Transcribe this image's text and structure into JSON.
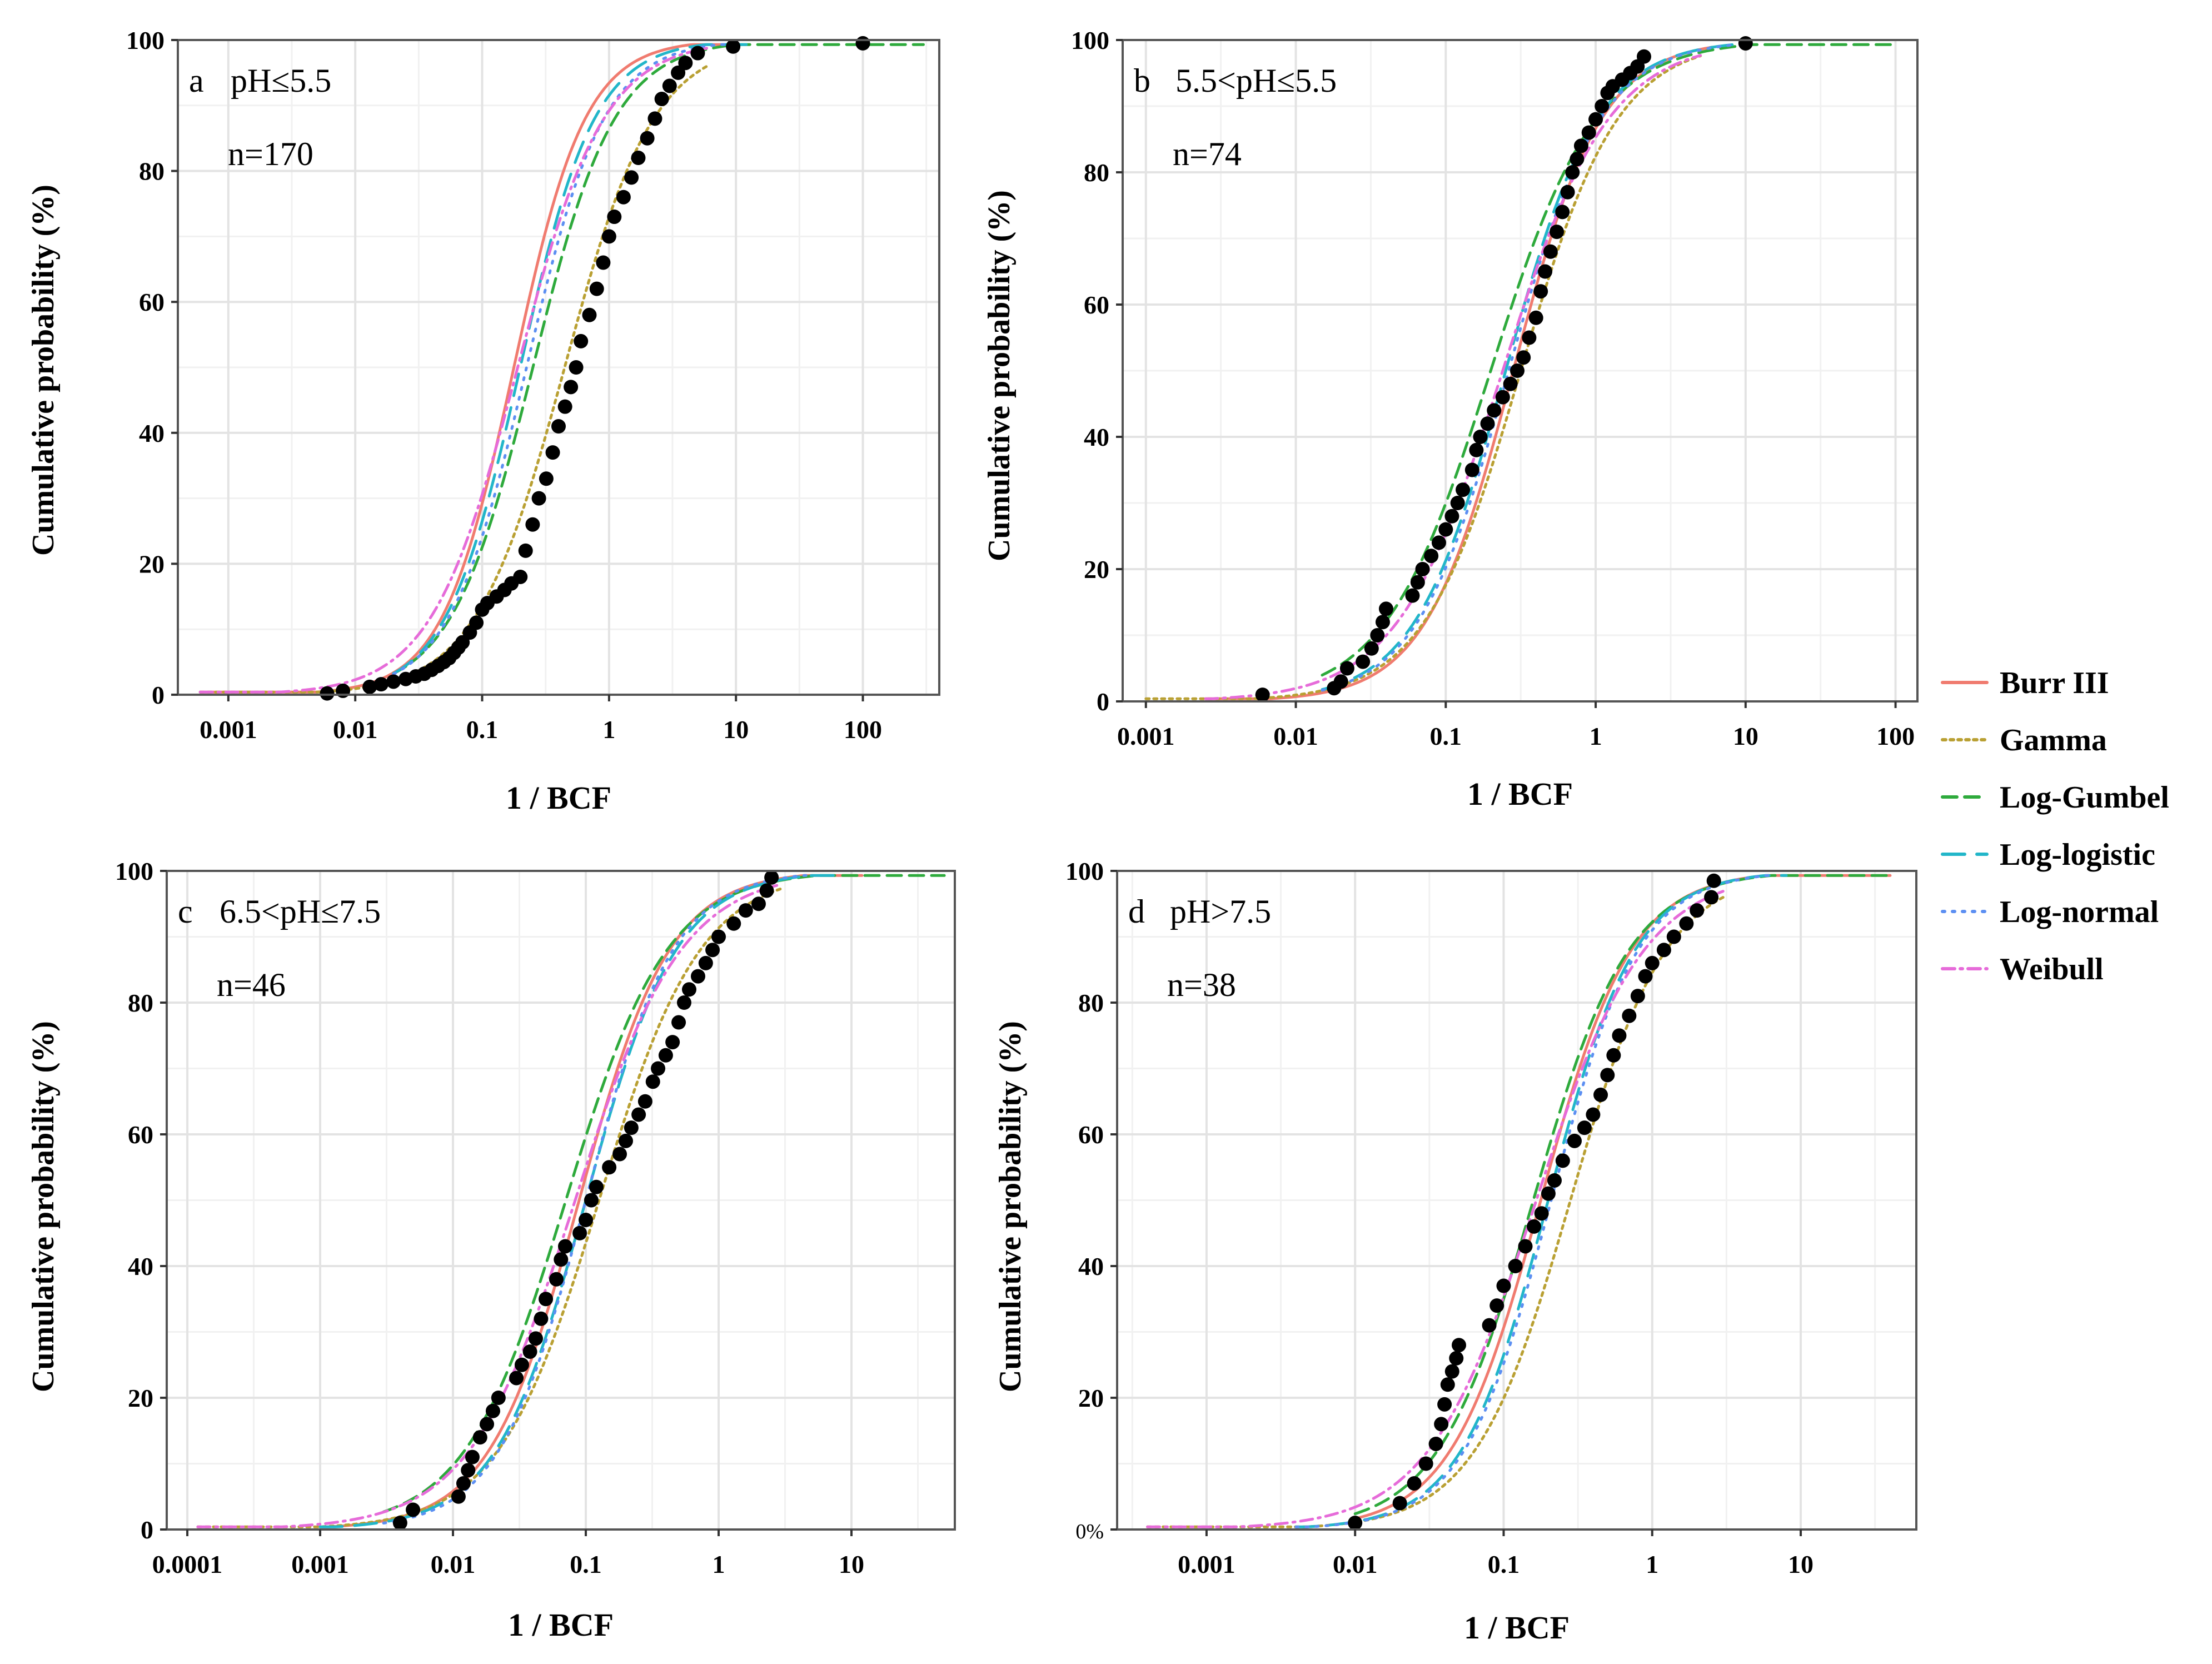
{
  "legend": {
    "entries": [
      {
        "name": "Burr III",
        "color": "#f07b6f",
        "dash": "solid"
      },
      {
        "name": "Gamma",
        "color": "#b9a033",
        "dash": "dotdense"
      },
      {
        "name": "Log-Gumbel",
        "color": "#2eaa3c",
        "dash": "dashed"
      },
      {
        "name": "Log-logistic",
        "color": "#22b6c9",
        "dash": "longdash"
      },
      {
        "name": "Log-normal",
        "color": "#5c8ff2",
        "dash": "dotted"
      },
      {
        "name": "Weibull",
        "color": "#e66bd9",
        "dash": "dashdot"
      }
    ]
  },
  "chart_data": [
    {
      "panel": "a",
      "label": "a",
      "title": "pH≤5.5",
      "n_label": "n=170",
      "type": "line",
      "xscale": "log",
      "xlabel": "1 / BCF",
      "ylabel": "Cumulative probability (%)",
      "xlim": [
        0.0004,
        400
      ],
      "ylim": [
        0,
        100
      ],
      "xticks": [
        "0.001",
        "0.01",
        "0.1",
        "1",
        "10",
        "100"
      ],
      "yticks": [
        "0",
        "20",
        "40",
        "60",
        "80",
        "100"
      ],
      "grid": true,
      "fits": {
        "Burr III": {
          "mu": -0.75,
          "sigma": 0.48,
          "start": 0.0006,
          "end": 8
        },
        "Gamma": {
          "mu": -0.35,
          "sigma": 0.6,
          "start": 0.0006,
          "end": 6
        },
        "Log-Gumbel": {
          "mu": -0.6,
          "sigma": 0.55,
          "start": 0.02,
          "end": 300
        },
        "Log-logistic": {
          "mu": -0.7,
          "sigma": 0.5,
          "start": 0.02,
          "end": 15
        },
        "Log-normal": {
          "mu": -0.65,
          "sigma": 0.52,
          "start": 0.02,
          "end": 10
        },
        "Weibull": {
          "mu": -0.72,
          "sigma": 0.58,
          "start": 0.0006,
          "end": 6
        }
      },
      "points": {
        "x": [
          0.006,
          0.008,
          0.013,
          0.016,
          0.02,
          0.025,
          0.03,
          0.035,
          0.04,
          0.045,
          0.05,
          0.055,
          0.06,
          0.065,
          0.07,
          0.08,
          0.09,
          0.1,
          0.11,
          0.13,
          0.15,
          0.17,
          0.2,
          0.22,
          0.25,
          0.28,
          0.32,
          0.36,
          0.4,
          0.45,
          0.5,
          0.55,
          0.6,
          0.7,
          0.8,
          0.9,
          1.0,
          1.1,
          1.3,
          1.5,
          1.7,
          2.0,
          2.3,
          2.6,
          3.0,
          3.5,
          4.0,
          5.0,
          9.5,
          100
        ],
        "y": [
          0.2,
          0.6,
          1.2,
          1.6,
          2.0,
          2.4,
          2.8,
          3.2,
          3.8,
          4.4,
          5.0,
          5.6,
          6.4,
          7.2,
          8.0,
          9.5,
          11,
          13,
          14,
          15,
          16,
          17,
          18,
          22,
          26,
          30,
          33,
          37,
          41,
          44,
          47,
          50,
          54,
          58,
          62,
          66,
          70,
          73,
          76,
          79,
          82,
          85,
          88,
          91,
          93,
          95,
          96.5,
          98,
          99,
          99.5
        ]
      }
    },
    {
      "panel": "b",
      "label": "b",
      "title": "5.5<pH≤5.5",
      "n_label": "n=74",
      "type": "line",
      "xscale": "log",
      "xlabel": "1 / BCF",
      "ylabel": "Cumulative probability (%)",
      "xlim": [
        0.0007,
        140
      ],
      "ylim": [
        0,
        100
      ],
      "xticks": [
        "0.001",
        "0.01",
        "0.1",
        "1",
        "10",
        "100"
      ],
      "yticks": [
        "0",
        "20",
        "40",
        "60",
        "80",
        "100"
      ],
      "grid": true,
      "fits": {
        "Burr III": {
          "mu": -0.55,
          "sigma": 0.5,
          "start": 0.0025,
          "end": 6
        },
        "Gamma": {
          "mu": -0.5,
          "sigma": 0.55,
          "start": 0.001,
          "end": 5
        },
        "Log-Gumbel": {
          "mu": -0.7,
          "sigma": 0.6,
          "start": 0.015,
          "end": 100
        },
        "Log-logistic": {
          "mu": -0.6,
          "sigma": 0.52,
          "start": 0.015,
          "end": 10
        },
        "Log-normal": {
          "mu": -0.58,
          "sigma": 0.52,
          "start": 0.015,
          "end": 8
        },
        "Weibull": {
          "mu": -0.62,
          "sigma": 0.6,
          "start": 0.0025,
          "end": 5
        }
      },
      "points": {
        "x": [
          0.006,
          0.018,
          0.02,
          0.022,
          0.028,
          0.032,
          0.035,
          0.038,
          0.04,
          0.06,
          0.065,
          0.07,
          0.08,
          0.09,
          0.1,
          0.11,
          0.12,
          0.13,
          0.15,
          0.16,
          0.17,
          0.19,
          0.21,
          0.24,
          0.27,
          0.3,
          0.33,
          0.36,
          0.4,
          0.43,
          0.46,
          0.5,
          0.55,
          0.6,
          0.65,
          0.7,
          0.75,
          0.8,
          0.9,
          1.0,
          1.1,
          1.2,
          1.3,
          1.5,
          1.7,
          1.9,
          2.1,
          10
        ],
        "y": [
          1,
          2,
          3,
          5,
          6,
          8,
          10,
          12,
          14,
          16,
          18,
          20,
          22,
          24,
          26,
          28,
          30,
          32,
          35,
          38,
          40,
          42,
          44,
          46,
          48,
          50,
          52,
          55,
          58,
          62,
          65,
          68,
          71,
          74,
          77,
          80,
          82,
          84,
          86,
          88,
          90,
          92,
          93,
          94,
          95,
          96,
          97.5,
          99.5
        ]
      }
    },
    {
      "panel": "c",
      "label": "c",
      "title": "6.5<pH≤7.5",
      "n_label": "n=46",
      "type": "line",
      "xscale": "log",
      "xlabel": "1 / BCF",
      "ylabel": "Cumulative probability (%)",
      "xlim": [
        7e-05,
        60
      ],
      "ylim": [
        0,
        100
      ],
      "xticks": [
        "0.0001",
        "0.001",
        "0.01",
        "0.1",
        "1",
        "10"
      ],
      "yticks": [
        "0",
        "20",
        "40",
        "60",
        "80",
        "100"
      ],
      "grid": true,
      "fits": {
        "Burr III": {
          "mu": -1.05,
          "sigma": 0.58,
          "start": 0.001,
          "end": 12
        },
        "Gamma": {
          "mu": -0.9,
          "sigma": 0.65,
          "start": 0.00012,
          "end": 3
        },
        "Log-Gumbel": {
          "mu": -1.15,
          "sigma": 0.65,
          "start": 0.003,
          "end": 50
        },
        "Log-logistic": {
          "mu": -1.0,
          "sigma": 0.58,
          "start": 0.001,
          "end": 8
        },
        "Log-normal": {
          "mu": -1.0,
          "sigma": 0.56,
          "start": 0.003,
          "end": 5
        },
        "Weibull": {
          "mu": -1.08,
          "sigma": 0.68,
          "start": 0.00012,
          "end": 3
        }
      },
      "points": {
        "x": [
          0.004,
          0.005,
          0.011,
          0.012,
          0.013,
          0.014,
          0.016,
          0.018,
          0.02,
          0.022,
          0.03,
          0.033,
          0.038,
          0.042,
          0.046,
          0.05,
          0.06,
          0.065,
          0.07,
          0.09,
          0.1,
          0.11,
          0.12,
          0.15,
          0.18,
          0.2,
          0.22,
          0.25,
          0.28,
          0.32,
          0.35,
          0.4,
          0.45,
          0.5,
          0.55,
          0.6,
          0.7,
          0.8,
          0.9,
          1.0,
          1.3,
          1.6,
          2.0,
          2.3,
          2.5
        ],
        "y": [
          1,
          3,
          5,
          7,
          9,
          11,
          14,
          16,
          18,
          20,
          23,
          25,
          27,
          29,
          32,
          35,
          38,
          41,
          43,
          45,
          47,
          50,
          52,
          55,
          57,
          59,
          61,
          63,
          65,
          68,
          70,
          72,
          74,
          77,
          80,
          82,
          84,
          86,
          88,
          90,
          92,
          94,
          95,
          97,
          99
        ]
      }
    },
    {
      "panel": "d",
      "label": "d",
      "title": "pH>7.5",
      "n_label": "n=38",
      "type": "line",
      "xscale": "log",
      "xlabel": "1 / BCF",
      "ylabel": "Cumulative probability (%)",
      "xlim": [
        0.00025,
        60
      ],
      "ylim": [
        0,
        100
      ],
      "xticks": [
        "0.001",
        "0.01",
        "0.1",
        "1",
        "10"
      ],
      "yticks": [
        "0%",
        "20",
        "40",
        "60",
        "80",
        "100"
      ],
      "grid": true,
      "fits": {
        "Burr III": {
          "mu": -0.75,
          "sigma": 0.52,
          "start": 0.01,
          "end": 40
        },
        "Gamma": {
          "mu": -0.55,
          "sigma": 0.55,
          "start": 0.0004,
          "end": 3
        },
        "Log-Gumbel": {
          "mu": -0.8,
          "sigma": 0.55,
          "start": 0.01,
          "end": 40
        },
        "Log-logistic": {
          "mu": -0.7,
          "sigma": 0.5,
          "start": 0.004,
          "end": 8
        },
        "Log-normal": {
          "mu": -0.68,
          "sigma": 0.5,
          "start": 0.004,
          "end": 6
        },
        "Weibull": {
          "mu": -0.78,
          "sigma": 0.62,
          "start": 0.0004,
          "end": 3
        }
      },
      "points": {
        "x": [
          0.01,
          0.02,
          0.025,
          0.03,
          0.035,
          0.038,
          0.04,
          0.042,
          0.045,
          0.048,
          0.05,
          0.08,
          0.09,
          0.1,
          0.12,
          0.14,
          0.16,
          0.18,
          0.2,
          0.22,
          0.25,
          0.3,
          0.35,
          0.4,
          0.45,
          0.5,
          0.55,
          0.6,
          0.7,
          0.8,
          0.9,
          1.0,
          1.2,
          1.4,
          1.7,
          2.0,
          2.5,
          2.6
        ],
        "y": [
          1,
          4,
          7,
          10,
          13,
          16,
          19,
          22,
          24,
          26,
          28,
          31,
          34,
          37,
          40,
          43,
          46,
          48,
          51,
          53,
          56,
          59,
          61,
          63,
          66,
          69,
          72,
          75,
          78,
          81,
          84,
          86,
          88,
          90,
          92,
          94,
          96,
          98.5
        ]
      }
    }
  ]
}
